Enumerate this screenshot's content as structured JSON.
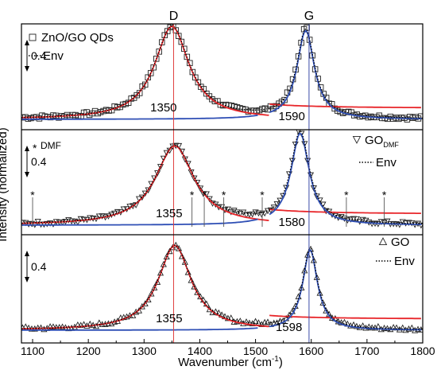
{
  "chart_data": {
    "type": "line",
    "xlabel": "Wavenumber (cm",
    "xlabel_sup": "-1",
    "xlabel_tail": ")",
    "ylabel": "Intensity (normalized)",
    "xlim": [
      1080,
      1800
    ],
    "xticks": [
      1100,
      1200,
      1300,
      1400,
      1500,
      1600,
      1700,
      1800
    ],
    "xtick_labels": [
      "1100",
      "1200",
      "1300",
      "1400",
      "1500",
      "1600",
      "1700",
      "1800"
    ],
    "band_labels": [
      {
        "text": "D",
        "x": 1353,
        "color": "#e0202a"
      },
      {
        "text": "G",
        "x": 1596,
        "color": "#3040a0"
      }
    ],
    "colors": {
      "d_fit": "#e8262a",
      "g_fit": "#2f4fb5",
      "envelope": "#000000",
      "data": "#222222",
      "d_line": "#e04040",
      "g_line": "#3a4aa8"
    },
    "scale_bar_label": "0.4",
    "panels": [
      {
        "legend": [
          "ZnO/GO QDs",
          "Env"
        ],
        "legend_marker": "square",
        "legend_position": "top-left",
        "d_peak": {
          "label": "1350",
          "center": 1350,
          "width": 75,
          "height": 0.9
        },
        "g_peak": {
          "label": "1590",
          "center": 1590,
          "width": 38,
          "height": 0.86
        }
      },
      {
        "legend": [
          "GO",
          "DMF",
          "Env"
        ],
        "legend_marker": "triangle-down",
        "legend_position": "top-right",
        "d_peak": {
          "label": "1355",
          "center": 1355,
          "width": 85,
          "height": 0.75
        },
        "g_peak": {
          "label": "1580",
          "center": 1580,
          "width": 40,
          "height": 0.87
        },
        "note": "* DMF",
        "dmf_stars": [
          1100,
          1386,
          1408,
          1443,
          1512,
          1663,
          1731
        ]
      },
      {
        "legend": [
          "GO",
          "Env"
        ],
        "legend_marker": "triangle",
        "legend_position": "top-right",
        "d_peak": {
          "label": "1355",
          "center": 1355,
          "width": 72,
          "height": 0.82
        },
        "g_peak": {
          "label": "1598",
          "center": 1598,
          "width": 32,
          "height": 0.78
        }
      }
    ]
  }
}
